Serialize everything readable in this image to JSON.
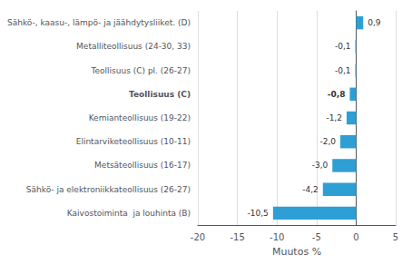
{
  "chart_data": {
    "type": "bar",
    "orientation": "horizontal",
    "categories": [
      "Kaivostoiminta  ja louhinta (B)",
      "Sähkö- ja elektroniikkateollisuus (26-27)",
      "Metsäteollisuus (16-17)",
      "Elintarviketeollisuus (10-11)",
      "Kemianteollisuus (19-22)",
      "Teollisuus (C)",
      "Teollisuus (C) pl. (26-27)",
      "Metalliteollisuus (24-30, 33)",
      "Sähkö-, kaasu-, lämpö- ja jäähdytysliiket. (D)"
    ],
    "values": [
      -10.5,
      -4.2,
      -3.0,
      -2.0,
      -1.2,
      -0.8,
      -0.1,
      -0.1,
      0.9
    ],
    "value_labels": [
      "-10,5",
      "-4,2",
      "-3,0",
      "-2,0",
      "-1,2",
      "-0,8",
      "-0,1",
      "-0,1",
      "0,9"
    ],
    "color": "#2e9fd4",
    "xlabel": "Muutos %",
    "xlim": [
      -20,
      5
    ],
    "xticks": [
      -20,
      -15,
      -10,
      -5,
      0,
      5
    ],
    "grid": true,
    "data_labels": true
  }
}
